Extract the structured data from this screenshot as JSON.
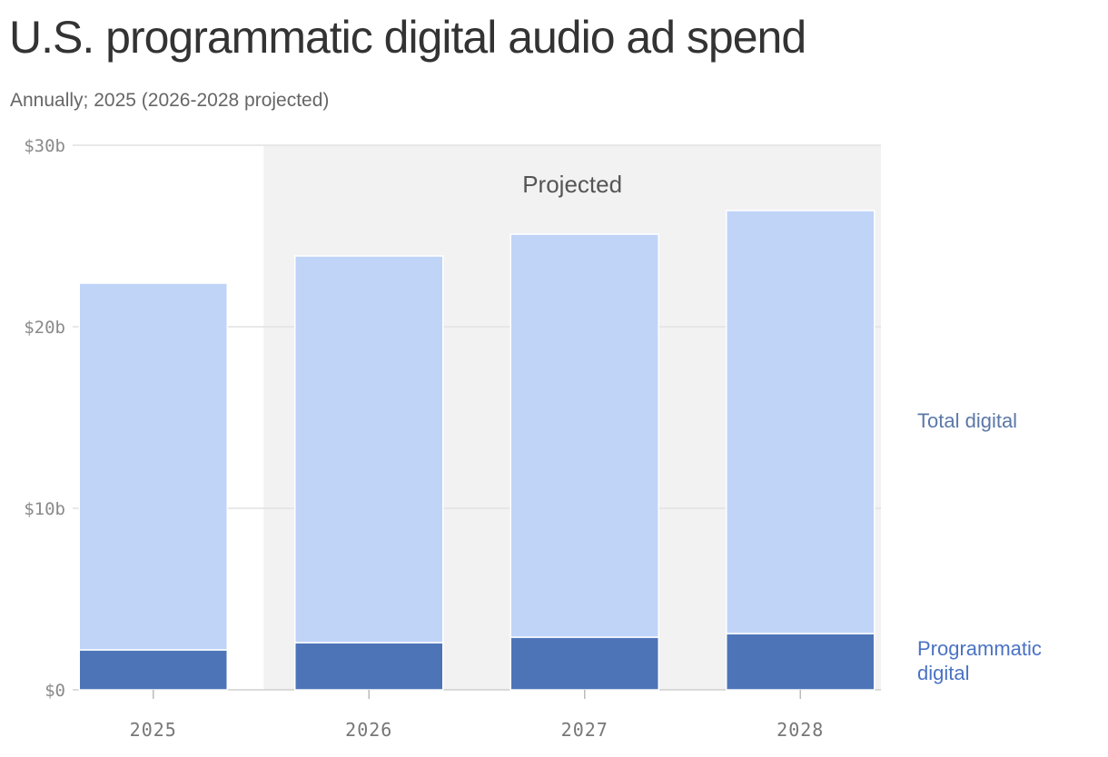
{
  "header": {
    "title": "U.S. programmatic digital audio ad spend",
    "subtitle": "Annually; 2025 (2026-2028 projected)"
  },
  "chart_data": {
    "type": "bar",
    "stacked": true,
    "categories": [
      "2025",
      "2026",
      "2027",
      "2028"
    ],
    "series": [
      {
        "name": "Programmatic digital",
        "values": [
          2.2,
          2.6,
          2.9,
          3.1
        ],
        "color": "#4e74b8"
      },
      {
        "name": "Total digital",
        "values": [
          22.4,
          23.9,
          25.1,
          26.4
        ],
        "color": "#c0d4f8"
      }
    ],
    "ylim": [
      0,
      30
    ],
    "yticks": [
      {
        "value": 0,
        "label": "$0"
      },
      {
        "value": 10,
        "label": "$10b"
      },
      {
        "value": 20,
        "label": "$20b"
      },
      {
        "value": 30,
        "label": "$30b"
      }
    ],
    "grid": true,
    "projected": {
      "label": "Projected",
      "categories": [
        "2026",
        "2027",
        "2028"
      ],
      "color": "#f2f2f2"
    },
    "legend": {
      "placement": "right",
      "colors": {
        "Total digital": "#5b78a8",
        "Programmatic digital": "#4a72c4"
      }
    }
  }
}
